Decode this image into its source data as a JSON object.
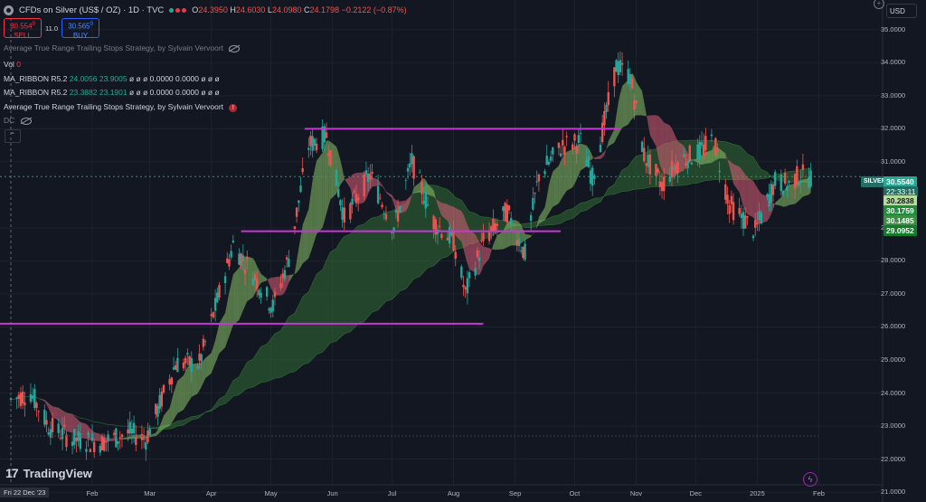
{
  "header": {
    "title": "CFDs on Silver (US$ / OZ) · 1D · TVC",
    "ohlc": [
      {
        "k": "O",
        "v": "24.3950"
      },
      {
        "k": "H",
        "v": "24.6030"
      },
      {
        "k": "L",
        "v": "24.0980"
      },
      {
        "k": "C",
        "v": "24.1798"
      },
      {
        "k": "",
        "v": "−0.2122 (−0.87%)"
      }
    ],
    "status_dots": [
      "#22ab94",
      "#f23645",
      "#f23645"
    ]
  },
  "trade": {
    "sell_price": "30.554",
    "sell_sup": "0",
    "sell_label": "SELL",
    "spread": "11.0",
    "buy_price": "30.565",
    "buy_sup": "0",
    "buy_label": "BUY"
  },
  "indicators": {
    "strategy_name_faded": "Average True Range Trailing Stops Strategy, by Sylvain Vervoort",
    "vol_label": "Vol",
    "vol_value": "0",
    "ribbon1_name": "MA_RIBBON R5.2",
    "ribbon1_v1": "24.0056",
    "ribbon1_v2": "23.9005",
    "ribbon1_rest": "ø ø ø 0.0000 0.0000 ø ø ø",
    "ribbon2_name": "MA_RIBBON R5.2",
    "ribbon2_v1": "23.3882",
    "ribbon2_v2": "23.1901",
    "ribbon2_rest": "ø ø ø 0.0000 0.0000 ø ø ø",
    "strategy_name": "Average True Range Trailing Stops Strategy, by Sylvain Vervoort",
    "strategy_err": "!",
    "dc_label": "DC"
  },
  "toolbar": {
    "currency": "USD",
    "collapse_glyph": "⌃",
    "plus_glyph": "+"
  },
  "logo": {
    "text": "TradingView",
    "mark": "17"
  },
  "axis": {
    "price_labels": [
      "35.0000",
      "34.0000",
      "33.0000",
      "32.0000",
      "31.0000",
      "29.0000",
      "28.0000",
      "27.0000",
      "26.0000",
      "25.0000",
      "24.0000",
      "23.0000",
      "22.0000",
      "21.0000"
    ],
    "date_labels": [
      "Feb",
      "Mar",
      "Apr",
      "May",
      "Jun",
      "Jul",
      "Aug",
      "Sep",
      "Oct",
      "Nov",
      "Dec",
      "2025",
      "Feb"
    ],
    "cursor_date": "Fri 22 Dec '23",
    "silver_tag": "SILVER",
    "silver_price": "30.5540",
    "countdown": "22:33:11",
    "tag_30_28": "30.2838",
    "tag_30_17": "30.1759",
    "tag_30_14": "30.1485",
    "tag_29_09": "29.0952"
  },
  "colors": {
    "background": "#131722",
    "up": "#26a69a",
    "down": "#ef5350",
    "level_line": "#c737d6",
    "ribbon_fast_up": "#8cc46a",
    "ribbon_fast_down": "#e0607a",
    "ribbon_slow": "#2f6b35"
  },
  "chart_data": {
    "type": "candlestick",
    "title": "CFDs on Silver (US$ / OZ) · 1D · TVC",
    "ylim": [
      20.7,
      35.9
    ],
    "x_range": [
      "2023-12-22",
      "2025-02-14"
    ],
    "last_price": 30.554,
    "price_path": [
      [
        "2023-12-22",
        23.8
      ],
      [
        "2024-01-01",
        24.0
      ],
      [
        "2024-01-10",
        23.0
      ],
      [
        "2024-01-22",
        22.6
      ],
      [
        "2024-02-05",
        22.5
      ],
      [
        "2024-02-20",
        22.8
      ],
      [
        "2024-02-28",
        22.6
      ],
      [
        "2024-03-05",
        23.5
      ],
      [
        "2024-03-14",
        24.9
      ],
      [
        "2024-03-26",
        24.9
      ],
      [
        "2024-04-05",
        27.0
      ],
      [
        "2024-04-12",
        28.5
      ],
      [
        "2024-04-22",
        27.6
      ],
      [
        "2024-05-02",
        26.6
      ],
      [
        "2024-05-10",
        28.1
      ],
      [
        "2024-05-20",
        31.5
      ],
      [
        "2024-05-29",
        31.8
      ],
      [
        "2024-06-07",
        29.3
      ],
      [
        "2024-06-20",
        30.6
      ],
      [
        "2024-07-02",
        29.0
      ],
      [
        "2024-07-11",
        31.0
      ],
      [
        "2024-07-22",
        29.2
      ],
      [
        "2024-08-01",
        28.6
      ],
      [
        "2024-08-07",
        27.0
      ],
      [
        "2024-08-16",
        28.6
      ],
      [
        "2024-08-28",
        29.5
      ],
      [
        "2024-09-06",
        28.2
      ],
      [
        "2024-09-13",
        30.6
      ],
      [
        "2024-09-25",
        31.5
      ],
      [
        "2024-10-04",
        31.6
      ],
      [
        "2024-10-10",
        30.5
      ],
      [
        "2024-10-22",
        33.9
      ],
      [
        "2024-10-29",
        33.6
      ],
      [
        "2024-11-05",
        31.2
      ],
      [
        "2024-11-14",
        30.3
      ],
      [
        "2024-11-22",
        31.0
      ],
      [
        "2024-12-03",
        31.3
      ],
      [
        "2024-12-10",
        31.7
      ],
      [
        "2024-12-18",
        29.7
      ],
      [
        "2024-12-31",
        28.9
      ],
      [
        "2025-01-10",
        30.4
      ],
      [
        "2025-01-17",
        30.3
      ],
      [
        "2025-01-22",
        30.6
      ],
      [
        "2025-01-28",
        30.55
      ]
    ],
    "horizontal_levels": [
      {
        "price": 32.0,
        "from": "2024-05-18",
        "to": "2024-10-24"
      },
      {
        "price": 28.9,
        "from": "2024-04-16",
        "to": "2024-09-24"
      },
      {
        "price": 26.1,
        "from": "2023-12-22",
        "to": "2024-08-16"
      },
      {
        "price": 22.7,
        "from": "2023-12-22",
        "to": "2025-02-01"
      }
    ]
  }
}
